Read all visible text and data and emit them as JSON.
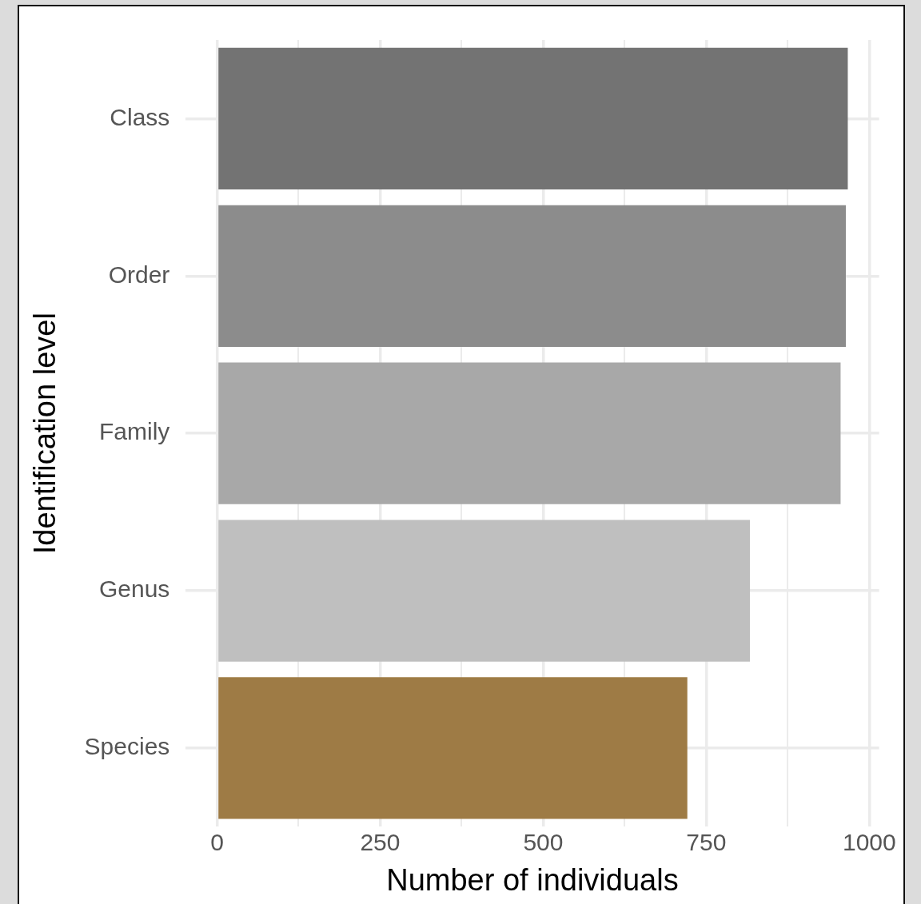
{
  "chart_data": {
    "type": "bar",
    "orientation": "horizontal",
    "categories": [
      "Class",
      "Order",
      "Family",
      "Genus",
      "Species"
    ],
    "values": [
      967,
      964,
      956,
      817,
      721
    ],
    "colors": [
      "#737373",
      "#8c8c8c",
      "#a8a8a8",
      "#bfbfbf",
      "#9e7b45"
    ],
    "xlim": [
      -48,
      1015
    ],
    "xticks": [
      0,
      {
        "value": 125,
        "label": null
      },
      250,
      {
        "value": 375,
        "label": null
      },
      500,
      {
        "value": 625,
        "label": null
      },
      750,
      {
        "value": 875,
        "label": null
      },
      1000
    ],
    "xlabel": "Number of individuals",
    "ylabel": "Identification level",
    "grid": true
  }
}
